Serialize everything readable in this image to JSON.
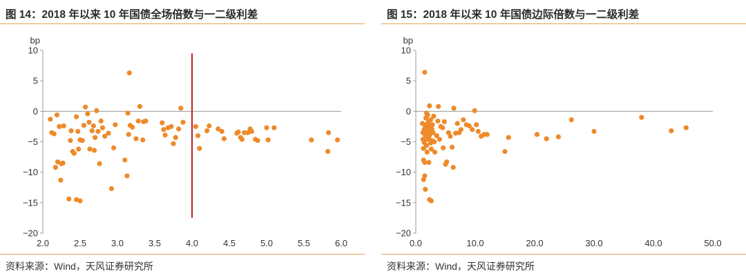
{
  "charts": [
    {
      "title": "图 14：2018 年以来 10 年国债全场倍数与一二级利差",
      "source": "资料来源：Wind，天风证券研究所",
      "chart_data": {
        "type": "scatter",
        "title": "图 14：2018 年以来 10 年国债全场倍数与一二级利差",
        "xlabel": "",
        "ylabel": "bp",
        "xlim": [
          2.0,
          6.0
        ],
        "ylim": [
          -20,
          10
        ],
        "xticks": [
          2.0,
          2.5,
          3.0,
          3.5,
          4.0,
          4.5,
          5.0,
          5.5,
          6.0
        ],
        "xtick_labels": [
          "2.0",
          "2.5",
          "3.0",
          "3.5",
          "4.0",
          "4.5",
          "5.0",
          "5.5",
          "6.0"
        ],
        "yticks": [
          10,
          5,
          0,
          -5,
          -10,
          -15,
          -20
        ],
        "ytick_labels": [
          "10",
          "5",
          "0",
          "−5",
          "−10",
          "−15",
          "−20"
        ],
        "grid": false,
        "reference_line": {
          "x": 4.0,
          "y_from": -17.5,
          "y_to": 9.5,
          "color": "#c0282e"
        },
        "marker_color": "#ee8a2a",
        "points": [
          [
            2.1,
            -1.3
          ],
          [
            2.12,
            -3.5
          ],
          [
            2.15,
            -3.7
          ],
          [
            2.17,
            -9.2
          ],
          [
            2.19,
            -0.6
          ],
          [
            2.2,
            -8.3
          ],
          [
            2.22,
            -2.5
          ],
          [
            2.24,
            -11.3
          ],
          [
            2.25,
            -8.6
          ],
          [
            2.27,
            -8.5
          ],
          [
            2.28,
            -2.4
          ],
          [
            2.35,
            -14.4
          ],
          [
            2.37,
            -4.8
          ],
          [
            2.38,
            -3.2
          ],
          [
            2.4,
            -6.6
          ],
          [
            2.42,
            -6.9
          ],
          [
            2.45,
            -0.9
          ],
          [
            2.45,
            -14.5
          ],
          [
            2.47,
            -3.3
          ],
          [
            2.48,
            -6.2
          ],
          [
            2.5,
            -4.7
          ],
          [
            2.5,
            -14.7
          ],
          [
            2.53,
            -4.8
          ],
          [
            2.55,
            -2.3
          ],
          [
            2.57,
            0.7
          ],
          [
            2.6,
            -0.4
          ],
          [
            2.62,
            -1.8
          ],
          [
            2.63,
            -6.2
          ],
          [
            2.66,
            -3.2
          ],
          [
            2.68,
            -2.4
          ],
          [
            2.69,
            -6.4
          ],
          [
            2.7,
            -4.3
          ],
          [
            2.72,
            0.1
          ],
          [
            2.74,
            -3.3
          ],
          [
            2.76,
            -8.6
          ],
          [
            2.78,
            -1.6
          ],
          [
            2.8,
            -2.7
          ],
          [
            2.83,
            -4.1
          ],
          [
            2.88,
            -3.6
          ],
          [
            2.92,
            -12.7
          ],
          [
            2.95,
            -6.0
          ],
          [
            2.97,
            -2.2
          ],
          [
            3.1,
            -8.0
          ],
          [
            3.13,
            -10.6
          ],
          [
            3.14,
            -0.3
          ],
          [
            3.15,
            -3.8
          ],
          [
            3.16,
            6.3
          ],
          [
            3.17,
            -2.3
          ],
          [
            3.2,
            -2.6
          ],
          [
            3.25,
            -4.5
          ],
          [
            3.28,
            -1.6
          ],
          [
            3.3,
            0.8
          ],
          [
            3.34,
            -4.7
          ],
          [
            3.35,
            -1.7
          ],
          [
            3.38,
            -1.6
          ],
          [
            3.6,
            -1.9
          ],
          [
            3.62,
            -3.0
          ],
          [
            3.64,
            -3.9
          ],
          [
            3.68,
            -2.7
          ],
          [
            3.72,
            -2.5
          ],
          [
            3.75,
            -5.3
          ],
          [
            3.78,
            -4.3
          ],
          [
            3.82,
            -2.9
          ],
          [
            3.85,
            0.5
          ],
          [
            3.88,
            -1.8
          ],
          [
            4.05,
            -2.5
          ],
          [
            4.08,
            -4.0
          ],
          [
            4.1,
            -6.1
          ],
          [
            4.2,
            -3.2
          ],
          [
            4.23,
            -2.4
          ],
          [
            4.35,
            -2.9
          ],
          [
            4.4,
            -3.3
          ],
          [
            4.43,
            -4.5
          ],
          [
            4.6,
            -3.6
          ],
          [
            4.62,
            -3.4
          ],
          [
            4.65,
            -4.3
          ],
          [
            4.67,
            -4.6
          ],
          [
            4.7,
            -3.5
          ],
          [
            4.75,
            -3.5
          ],
          [
            4.78,
            -2.9
          ],
          [
            4.8,
            -3.3
          ],
          [
            4.85,
            -4.6
          ],
          [
            4.88,
            -4.8
          ],
          [
            5.0,
            -2.7
          ],
          [
            5.02,
            -4.7
          ],
          [
            5.1,
            -2.7
          ],
          [
            5.6,
            -4.7
          ],
          [
            5.82,
            -6.6
          ],
          [
            5.83,
            -3.5
          ],
          [
            5.95,
            -4.7
          ]
        ]
      }
    },
    {
      "title": "图 15：2018 年以来 10 年国债边际倍数与一二级利差",
      "source": "资料来源：Wind，天风证券研究所",
      "chart_data": {
        "type": "scatter",
        "title": "图 15：2018 年以来 10 年国债边际倍数与一二级利差",
        "xlabel": "",
        "ylabel": "bp",
        "xlim": [
          0,
          50
        ],
        "ylim": [
          -20,
          10
        ],
        "xticks": [
          0,
          10,
          20,
          30,
          40,
          50
        ],
        "xtick_labels": [
          "0.0",
          "10.0",
          "20.0",
          "30.0",
          "40.0",
          "50.0"
        ],
        "yticks": [
          10,
          5,
          0,
          -5,
          -10,
          -15,
          -20
        ],
        "ytick_labels": [
          "10",
          "5",
          "0",
          "−5",
          "−10",
          "−15",
          "−20"
        ],
        "grid": false,
        "marker_color": "#ee8a2a",
        "points": [
          [
            1.1,
            -2.0
          ],
          [
            1.2,
            -3.5
          ],
          [
            1.2,
            -4.6
          ],
          [
            1.3,
            -6.1
          ],
          [
            1.3,
            -8.0
          ],
          [
            1.3,
            -11.2
          ],
          [
            1.4,
            -3.0
          ],
          [
            1.4,
            -5.1
          ],
          [
            1.5,
            6.4
          ],
          [
            1.5,
            -8.4
          ],
          [
            1.5,
            -10.6
          ],
          [
            1.6,
            -2.6
          ],
          [
            1.6,
            -4.0
          ],
          [
            1.6,
            -12.8
          ],
          [
            1.7,
            -1.1
          ],
          [
            1.7,
            -2.2
          ],
          [
            1.8,
            -3.7
          ],
          [
            1.8,
            -5.6
          ],
          [
            1.8,
            -0.3
          ],
          [
            1.9,
            -3.2
          ],
          [
            1.9,
            -6.7
          ],
          [
            2.0,
            -2.7
          ],
          [
            2.0,
            -4.6
          ],
          [
            2.0,
            -0.6
          ],
          [
            2.1,
            -3.5
          ],
          [
            2.1,
            -1.8
          ],
          [
            2.2,
            -2.5
          ],
          [
            2.2,
            -4.2
          ],
          [
            2.2,
            -8.4
          ],
          [
            2.3,
            -14.5
          ],
          [
            2.3,
            -3.9
          ],
          [
            2.3,
            0.9
          ],
          [
            2.4,
            -2.4
          ],
          [
            2.4,
            -3.0
          ],
          [
            2.5,
            -5.2
          ],
          [
            2.5,
            -1.4
          ],
          [
            2.6,
            -3.3
          ],
          [
            2.6,
            -6.2
          ],
          [
            2.6,
            -14.7
          ],
          [
            2.7,
            -2.9
          ],
          [
            2.7,
            -4.8
          ],
          [
            2.8,
            -2.2
          ],
          [
            2.9,
            -3.5
          ],
          [
            3.0,
            -0.8
          ],
          [
            3.1,
            -5.0
          ],
          [
            3.2,
            -6.7
          ],
          [
            3.5,
            -4.0
          ],
          [
            3.7,
            -1.6
          ],
          [
            3.8,
            0.8
          ],
          [
            4.0,
            -4.6
          ],
          [
            4.2,
            -2.5
          ],
          [
            4.5,
            -2.7
          ],
          [
            4.6,
            -6.0
          ],
          [
            4.8,
            -1.7
          ],
          [
            5.0,
            -8.7
          ],
          [
            5.2,
            -8.3
          ],
          [
            5.5,
            -3.5
          ],
          [
            5.8,
            -4.1
          ],
          [
            6.1,
            -5.9
          ],
          [
            6.3,
            -9.2
          ],
          [
            6.4,
            0.5
          ],
          [
            6.7,
            -3.6
          ],
          [
            7.0,
            -2.0
          ],
          [
            7.3,
            -3.5
          ],
          [
            7.6,
            -3.0
          ],
          [
            8.0,
            -1.4
          ],
          [
            8.5,
            -2.2
          ],
          [
            9.0,
            -2.4
          ],
          [
            9.5,
            -3.0
          ],
          [
            9.9,
            0.1
          ],
          [
            10.2,
            -2.2
          ],
          [
            10.5,
            -3.3
          ],
          [
            11.0,
            -4.1
          ],
          [
            11.5,
            -3.8
          ],
          [
            12.0,
            -3.8
          ],
          [
            15.0,
            -6.6
          ],
          [
            15.6,
            -4.3
          ],
          [
            20.4,
            -3.8
          ],
          [
            22.0,
            -4.5
          ],
          [
            24.0,
            -4.2
          ],
          [
            26.2,
            -1.4
          ],
          [
            30.0,
            -3.3
          ],
          [
            38.0,
            -1.0
          ],
          [
            43.0,
            -3.2
          ],
          [
            45.5,
            -2.7
          ]
        ]
      }
    }
  ]
}
